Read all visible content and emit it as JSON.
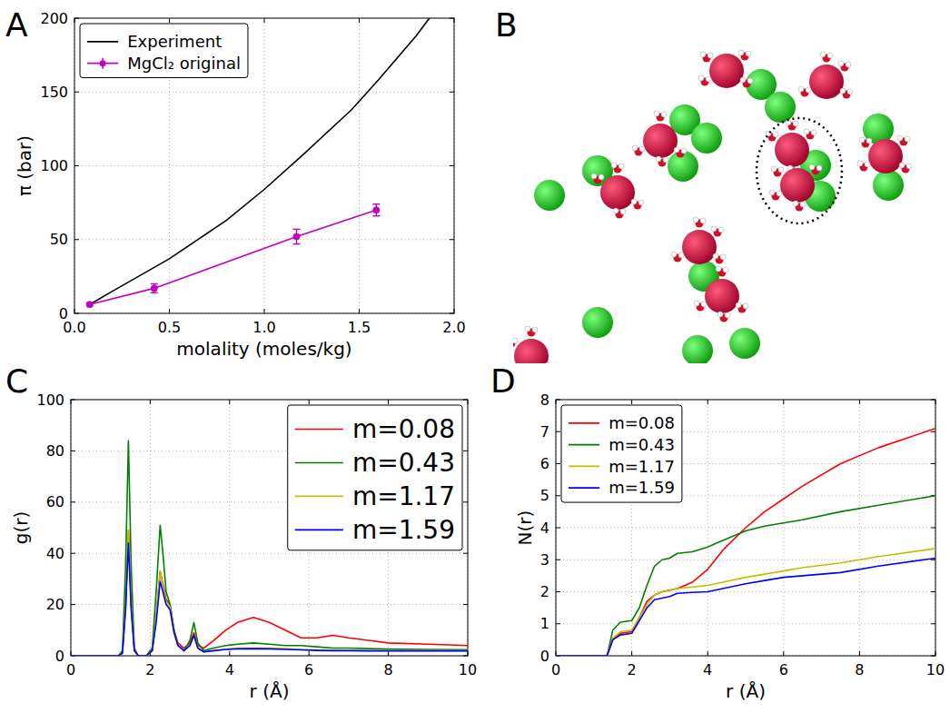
{
  "chart_data": [
    {
      "type": "line",
      "panel_label": "A",
      "xlabel": "molality (moles/kg)",
      "ylabel": "π (bar)",
      "xlim": [
        0,
        2
      ],
      "ylim": [
        0,
        200
      ],
      "xticks": [
        {
          "value": 0,
          "label": "0.0"
        },
        {
          "value": 0.5,
          "label": "0.5"
        },
        {
          "value": 1,
          "label": "1.0"
        },
        {
          "value": 1.5,
          "label": "1.5"
        },
        {
          "value": 2,
          "label": "2.0"
        }
      ],
      "yticks": [
        0,
        50,
        100,
        150,
        200
      ],
      "grid": true,
      "legend": "upper left",
      "series": [
        {
          "name": "Experiment",
          "color": "#000000",
          "line_style": "solid",
          "x": [
            0.08,
            0.2,
            0.5,
            0.8,
            1.0,
            1.2,
            1.46,
            1.6,
            1.8,
            1.87
          ],
          "values": [
            6,
            15,
            37,
            63,
            84,
            107,
            138,
            158,
            188,
            200
          ]
        },
        {
          "name": "MgCl₂ original",
          "color": "#bf00bf",
          "line_style": "solid",
          "marker": "circle",
          "x": [
            0.08,
            0.42,
            1.17,
            1.59
          ],
          "values": [
            6,
            17,
            52,
            70
          ],
          "errors": [
            1,
            3,
            5,
            4
          ]
        }
      ]
    },
    {
      "type": "image",
      "panel_label": "B"
    },
    {
      "type": "line",
      "panel_label": "C",
      "xlabel": "r (Å)",
      "ylabel": "g(r)",
      "xlim": [
        0,
        10
      ],
      "ylim": [
        0,
        100
      ],
      "xticks": [
        0,
        2,
        4,
        6,
        8,
        10
      ],
      "yticks": [
        0,
        20,
        40,
        60,
        80,
        100
      ],
      "grid": true,
      "legend": "upper right",
      "x": [
        0,
        1.2,
        1.3,
        1.38,
        1.45,
        1.52,
        1.6,
        1.7,
        1.9,
        2.05,
        2.15,
        2.25,
        2.32,
        2.4,
        2.5,
        2.6,
        2.7,
        2.85,
        3.0,
        3.1,
        3.2,
        3.35,
        3.6,
        3.9,
        4.2,
        4.6,
        5.0,
        5.4,
        5.8,
        6.2,
        6.6,
        7.0,
        7.5,
        8.0,
        9.0,
        10.0
      ],
      "series": [
        {
          "name": "m=0.08",
          "color": "#ff0000",
          "values": [
            0,
            0,
            1,
            20,
            49,
            20,
            2,
            0,
            0,
            2,
            15,
            33,
            28,
            22,
            20,
            10,
            5,
            3,
            5,
            9,
            4,
            3,
            6,
            10,
            13,
            15,
            13,
            10,
            7,
            7,
            8,
            7,
            6,
            5,
            4.5,
            4
          ]
        },
        {
          "name": "m=0.43",
          "color": "#008000",
          "values": [
            0,
            0,
            2,
            35,
            84,
            35,
            3,
            0,
            0,
            3,
            25,
            51,
            40,
            25,
            20,
            10,
            4,
            2,
            6,
            13,
            5,
            2,
            3,
            4,
            4.5,
            5,
            4.5,
            4,
            4,
            3.5,
            3,
            3,
            2.8,
            2.6,
            2.5,
            2.4
          ]
        },
        {
          "name": "m=1.17",
          "color": "#bfbf00",
          "values": [
            0,
            0,
            1,
            20,
            49,
            20,
            2,
            0,
            0,
            2,
            15,
            33,
            27,
            21,
            19,
            9,
            4,
            2,
            4,
            8,
            3,
            1.5,
            2,
            2.5,
            3,
            3,
            3,
            2.8,
            2.5,
            2.3,
            2.2,
            2.1,
            2,
            2,
            2,
            2
          ]
        },
        {
          "name": "m=1.59",
          "color": "#0000ff",
          "values": [
            0,
            0,
            1,
            18,
            44,
            18,
            2,
            0,
            0,
            2,
            13,
            29,
            25,
            20,
            18,
            9,
            4,
            2,
            4,
            8,
            3,
            1.5,
            2,
            2.5,
            2.7,
            2.8,
            2.7,
            2.5,
            2.3,
            2.1,
            2,
            2,
            1.9,
            1.9,
            1.9,
            1.9
          ]
        }
      ]
    },
    {
      "type": "line",
      "panel_label": "D",
      "xlabel": "r (Å)",
      "ylabel": "N(r)",
      "xlim": [
        0,
        10
      ],
      "ylim": [
        0,
        8
      ],
      "xticks": [
        0,
        2,
        4,
        6,
        8,
        10
      ],
      "yticks": [
        0,
        1,
        2,
        3,
        4,
        5,
        6,
        7,
        8
      ],
      "grid": true,
      "legend": "upper left",
      "x": [
        0,
        1.35,
        1.5,
        1.7,
        2.0,
        2.2,
        2.4,
        2.6,
        2.8,
        3.0,
        3.2,
        3.6,
        4.0,
        4.4,
        5.0,
        5.5,
        6.0,
        6.5,
        7.5,
        8.5,
        10
      ],
      "series": [
        {
          "name": "m=0.08",
          "color": "#ff0000",
          "values": [
            0,
            0,
            0.5,
            0.7,
            0.75,
            1.2,
            1.7,
            1.9,
            2.0,
            2.05,
            2.1,
            2.3,
            2.7,
            3.3,
            4.0,
            4.5,
            4.9,
            5.3,
            6.0,
            6.5,
            7.1
          ]
        },
        {
          "name": "m=0.43",
          "color": "#008000",
          "values": [
            0,
            0,
            0.8,
            1.05,
            1.1,
            1.5,
            2.2,
            2.8,
            3.0,
            3.05,
            3.2,
            3.25,
            3.4,
            3.6,
            3.9,
            4.05,
            4.15,
            4.25,
            4.5,
            4.7,
            5.0
          ]
        },
        {
          "name": "m=1.17",
          "color": "#bfbf00",
          "values": [
            0,
            0,
            0.55,
            0.75,
            0.8,
            1.2,
            1.6,
            1.9,
            2.0,
            2.05,
            2.1,
            2.15,
            2.2,
            2.3,
            2.45,
            2.55,
            2.65,
            2.75,
            2.9,
            3.1,
            3.35
          ]
        },
        {
          "name": "m=1.59",
          "color": "#0000ff",
          "values": [
            0,
            0,
            0.5,
            0.65,
            0.7,
            1.1,
            1.5,
            1.75,
            1.8,
            1.85,
            1.95,
            1.98,
            2.0,
            2.1,
            2.25,
            2.35,
            2.45,
            2.5,
            2.6,
            2.8,
            3.05
          ]
        }
      ]
    }
  ]
}
